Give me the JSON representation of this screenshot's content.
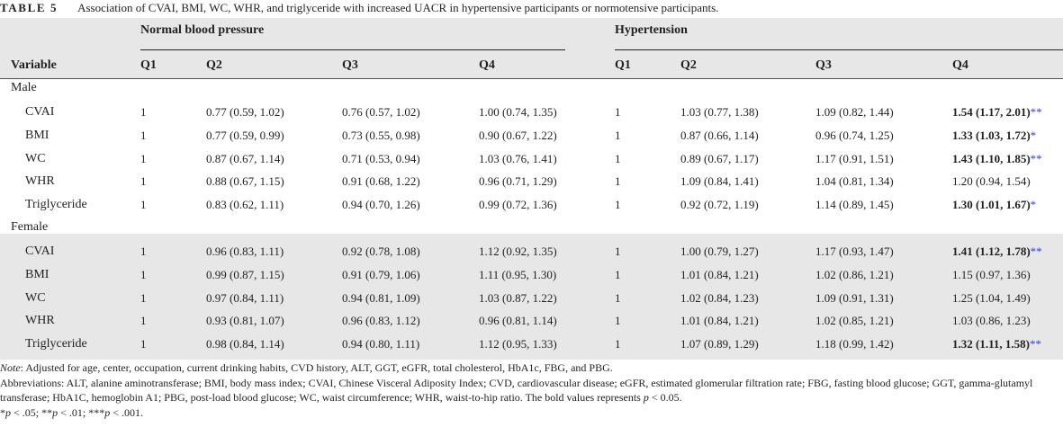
{
  "caption": {
    "label": "TABLE 5",
    "title": "Association of CVAI, BMI, WC, WHR, and triglyceride with increased UACR in hypertensive participants or normotensive participants."
  },
  "table": {
    "group_headers": [
      "Normal blood pressure",
      "Hypertension"
    ],
    "variable_header": "Variable",
    "quartiles": [
      "Q1",
      "Q2",
      "Q3",
      "Q4"
    ],
    "sections": [
      {
        "label": "Male",
        "rows": [
          {
            "name": "CVAI",
            "cells": [
              {
                "v": "1"
              },
              {
                "v": "0.77 (0.59, 1.02)"
              },
              {
                "v": "0.76 (0.57, 1.02)"
              },
              {
                "v": "1.00 (0.74, 1.35)"
              },
              {
                "v": "1"
              },
              {
                "v": "1.03 (0.77, 1.38)"
              },
              {
                "v": "1.09 (0.82, 1.44)"
              },
              {
                "v": "1.54 (1.17, 2.01)",
                "bold": true,
                "sig": "**"
              }
            ]
          },
          {
            "name": "BMI",
            "cells": [
              {
                "v": "1"
              },
              {
                "v": "0.77 (0.59, 0.99)"
              },
              {
                "v": "0.73 (0.55, 0.98)"
              },
              {
                "v": "0.90 (0.67, 1.22)"
              },
              {
                "v": "1"
              },
              {
                "v": "0.87 (0.66, 1.14)"
              },
              {
                "v": "0.96 (0.74, 1.25)"
              },
              {
                "v": "1.33 (1.03, 1.72)",
                "bold": true,
                "sig": "*"
              }
            ]
          },
          {
            "name": "WC",
            "cells": [
              {
                "v": "1"
              },
              {
                "v": "0.87 (0.67, 1.14)"
              },
              {
                "v": "0.71 (0.53, 0.94)"
              },
              {
                "v": "1.03 (0.76, 1.41)"
              },
              {
                "v": "1"
              },
              {
                "v": "0.89 (0.67, 1.17)"
              },
              {
                "v": "1.17 (0.91, 1.51)"
              },
              {
                "v": "1.43 (1.10, 1.85)",
                "bold": true,
                "sig": "**"
              }
            ]
          },
          {
            "name": "WHR",
            "cells": [
              {
                "v": "1"
              },
              {
                "v": "0.88 (0.67, 1.15)"
              },
              {
                "v": "0.91 (0.68, 1.22)"
              },
              {
                "v": "0.96 (0.71, 1.29)"
              },
              {
                "v": "1"
              },
              {
                "v": "1.09 (0.84, 1.41)"
              },
              {
                "v": "1.04 (0.81, 1.34)"
              },
              {
                "v": "1.20 (0.94, 1.54)"
              }
            ]
          },
          {
            "name": "Triglyceride",
            "cells": [
              {
                "v": "1"
              },
              {
                "v": "0.83 (0.62, 1.11)"
              },
              {
                "v": "0.94 (0.70, 1.26)"
              },
              {
                "v": "0.99 (0.72, 1.36)"
              },
              {
                "v": "1"
              },
              {
                "v": "0.92 (0.72, 1.19)"
              },
              {
                "v": "1.14 (0.89, 1.45)"
              },
              {
                "v": "1.30 (1.01, 1.67)",
                "bold": true,
                "sig": "*"
              }
            ]
          }
        ]
      },
      {
        "label": "Female",
        "rows": [
          {
            "name": "CVAI",
            "cells": [
              {
                "v": "1"
              },
              {
                "v": "0.96 (0.83, 1.11)"
              },
              {
                "v": "0.92 (0.78, 1.08)"
              },
              {
                "v": "1.12 (0.92, 1.35)"
              },
              {
                "v": "1"
              },
              {
                "v": "1.00 (0.79, 1.27)"
              },
              {
                "v": "1.17 (0.93, 1.47)"
              },
              {
                "v": "1.41 (1.12, 1.78)",
                "bold": true,
                "sig": "**"
              }
            ]
          },
          {
            "name": "BMI",
            "cells": [
              {
                "v": "1"
              },
              {
                "v": "0.99 (0.87, 1.15)"
              },
              {
                "v": "0.91 (0.79, 1.06)"
              },
              {
                "v": "1.11 (0.95, 1.30)"
              },
              {
                "v": "1"
              },
              {
                "v": "1.01 (0.84, 1.21)"
              },
              {
                "v": "1.02 (0.86, 1.21)"
              },
              {
                "v": "1.15 (0.97, 1.36)"
              }
            ]
          },
          {
            "name": "WC",
            "cells": [
              {
                "v": "1"
              },
              {
                "v": "0.97 (0.84, 1.11)"
              },
              {
                "v": "0.94 (0.81, 1.09)"
              },
              {
                "v": "1.03 (0.87, 1.22)"
              },
              {
                "v": "1"
              },
              {
                "v": "1.02 (0.84, 1.23)"
              },
              {
                "v": "1.09 (0.91, 1.31)"
              },
              {
                "v": "1.25 (1.04, 1.49)"
              }
            ]
          },
          {
            "name": "WHR",
            "cells": [
              {
                "v": "1"
              },
              {
                "v": "0.93 (0.81, 1.07)"
              },
              {
                "v": "0.96 (0.83, 1.12)"
              },
              {
                "v": "0.96 (0.81, 1.14)"
              },
              {
                "v": "1"
              },
              {
                "v": "1.01 (0.84, 1.21)"
              },
              {
                "v": "1.02 (0.85, 1.21)"
              },
              {
                "v": "1.03 (0.86, 1.23)"
              }
            ]
          },
          {
            "name": "Triglyceride",
            "cells": [
              {
                "v": "1"
              },
              {
                "v": "0.98 (0.84, 1.14)"
              },
              {
                "v": "0.94 (0.80, 1.11)"
              },
              {
                "v": "1.12 (0.95, 1.33)"
              },
              {
                "v": "1"
              },
              {
                "v": "1.07 (0.89, 1.29)"
              },
              {
                "v": "1.18 (0.99, 1.42)"
              },
              {
                "v": "1.32 (1.11, 1.58)",
                "bold": true,
                "sig": "**"
              }
            ]
          }
        ]
      }
    ]
  },
  "notes": {
    "note_label": "Note",
    "note_text": ": Adjusted for age, center, occupation, current drinking habits, CVD history, ALT, GGT, eGFR, total cholesterol, HbA1c, FBG, and PBG.",
    "abbreviations": "Abbreviations: ALT, alanine aminotransferase; BMI, body mass index; CVAI, Chinese Visceral Adiposity Index; CVD, cardiovascular disease; eGFR, estimated glomerular filtration rate; FBG, fasting blood glucose; GGT, gamma-glutamyl transferase; HbA1C, hemoglobin A1; PBG, post-load blood glucose; WC, waist circumference; WHR, waist-to-hip ratio. The bold values represents",
    "abbreviations_tail_p": "p",
    "abbreviations_tail": " < 0.05.",
    "sig_line": [
      {
        "stars": "*",
        "p": "p",
        "rest": " < .05; "
      },
      {
        "stars": "**",
        "p": "p",
        "rest": " < .01; "
      },
      {
        "stars": "***",
        "p": "p",
        "rest": " < .001."
      }
    ]
  }
}
